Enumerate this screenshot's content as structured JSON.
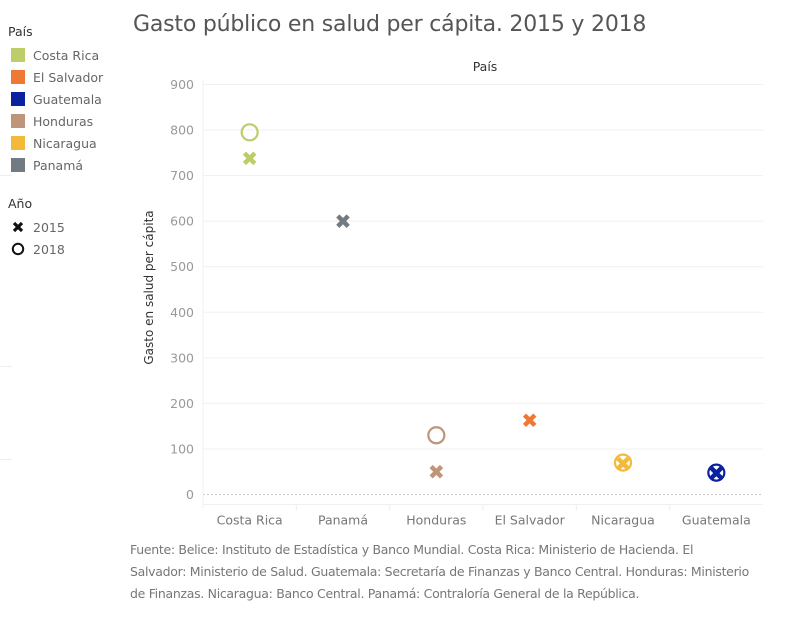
{
  "title": "Gasto público en salud per cápita. 2015 y 2018",
  "legend": {
    "country_title": "País",
    "countries": [
      {
        "name": "Costa Rica",
        "color": "#bccd6a"
      },
      {
        "name": "El Salvador",
        "color": "#ef7834"
      },
      {
        "name": "Guatemala",
        "color": "#0a21a0"
      },
      {
        "name": "Honduras",
        "color": "#bf957a"
      },
      {
        "name": "Nicaragua",
        "color": "#f3b93a"
      },
      {
        "name": "Panamá",
        "color": "#727a82"
      }
    ],
    "year_title": "Año",
    "years": [
      {
        "label": "2015",
        "shape": "x-icon"
      },
      {
        "label": "2018",
        "shape": "circle-icon"
      }
    ]
  },
  "chart_data": {
    "type": "scatter",
    "title": "Gasto público en salud per cápita. 2015 y 2018",
    "column_header": "País",
    "xlabel": "",
    "ylabel": "Gasto en salud per cápita",
    "categories": [
      "Costa Rica",
      "Panamá",
      "Honduras",
      "El Salvador",
      "Nicaragua",
      "Guatemala"
    ],
    "ylim": [
      0,
      900
    ],
    "yticks": [
      0,
      100,
      200,
      300,
      400,
      500,
      600,
      700,
      800,
      900
    ],
    "grid": true,
    "legend_position": "left",
    "series": [
      {
        "name": "2015",
        "marker": "x",
        "values": [
          738,
          600,
          50,
          163,
          68,
          47
        ]
      },
      {
        "name": "2018",
        "marker": "circle",
        "values": [
          795,
          null,
          130,
          null,
          70,
          48
        ]
      }
    ],
    "colors": {
      "Costa Rica": "#bccd6a",
      "Panamá": "#727a82",
      "Honduras": "#bf957a",
      "El Salvador": "#ef7834",
      "Nicaragua": "#f3b93a",
      "Guatemala": "#0a21a0"
    }
  },
  "source": "Fuente:  Belice: Instituto de Estadística y Banco Mundial. Costa Rica: Ministerio de Hacienda. El Salvador: Ministerio de Salud. Guatemala: Secretaría de Finanzas y Banco Central. Honduras: Ministerio de Finanzas. Nicaragua: Banco Central. Panamá: Contraloría General de la República."
}
